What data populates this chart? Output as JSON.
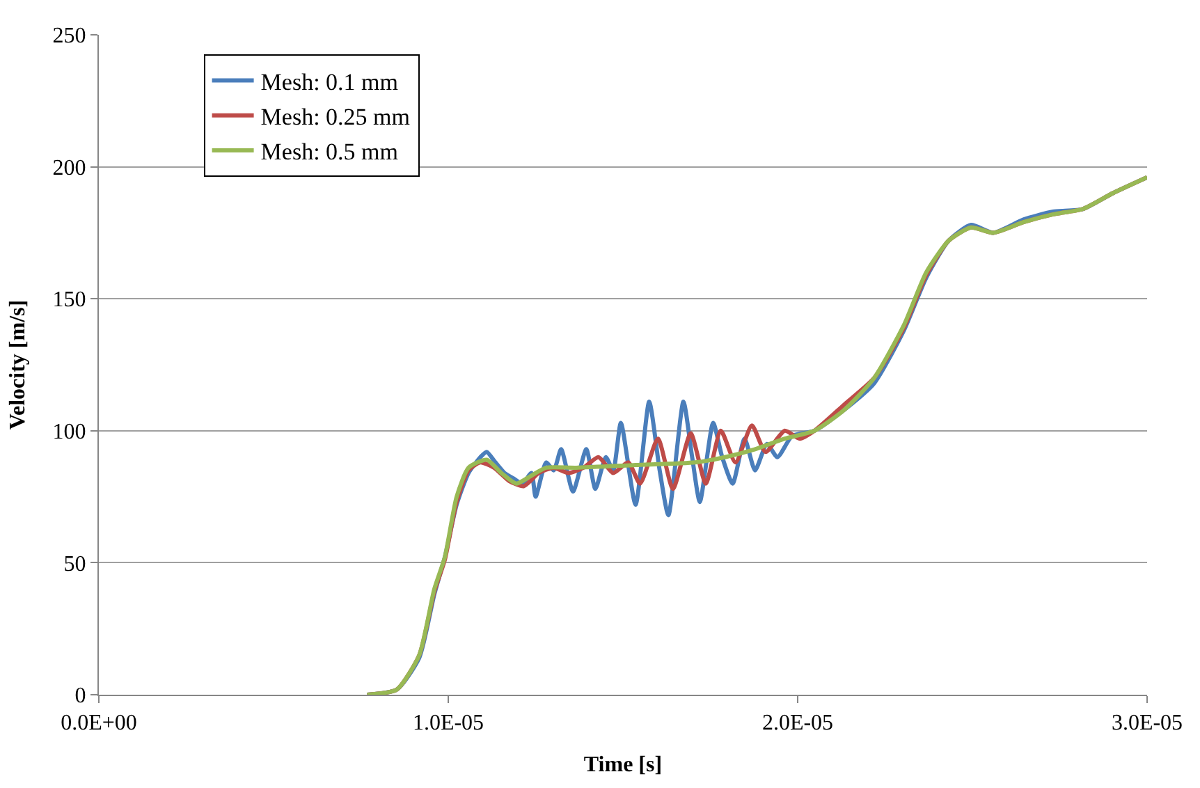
{
  "chart_data": {
    "type": "line",
    "xlabel": "Time [s]",
    "ylabel": "Velocity [m/s]",
    "xlim": [
      0,
      3e-05
    ],
    "ylim": [
      0,
      250
    ],
    "xticks": [
      {
        "value": 0,
        "label": "0.0E+00"
      },
      {
        "value": 1e-05,
        "label": "1.0E-05"
      },
      {
        "value": 2e-05,
        "label": "2.0E-05"
      },
      {
        "value": 3e-05,
        "label": "3.0E-05"
      }
    ],
    "yticks": [
      0,
      50,
      100,
      150,
      200,
      250
    ],
    "grid": "y",
    "legend": "top left",
    "line_style": "solid",
    "marker": "none",
    "series": [
      {
        "name": "Mesh: 0.1 mm",
        "color": "#4a7ebb",
        "x": [
          7.68e-06,
          8.53e-06,
          9.17e-06,
          9.6e-06,
          9.9e-06,
          1.024e-05,
          1.058e-05,
          1.092e-05,
          1.11e-05,
          1.135e-05,
          1.161e-05,
          1.186e-05,
          1.212e-05,
          1.238e-05,
          1.25e-05,
          1.28e-05,
          1.302e-05,
          1.323e-05,
          1.357e-05,
          1.395e-05,
          1.421e-05,
          1.451e-05,
          1.472e-05,
          1.494e-05,
          1.536e-05,
          1.575e-05,
          1.605e-05,
          1.63e-05,
          1.673e-05,
          1.698e-05,
          1.72e-05,
          1.758e-05,
          1.784e-05,
          1.814e-05,
          1.848e-05,
          1.878e-05,
          1.912e-05,
          1.942e-05,
          1.984e-05,
          2.048e-05,
          2.134e-05,
          2.219e-05,
          2.304e-05,
          2.368e-05,
          2.432e-05,
          2.496e-05,
          2.56e-05,
          2.646e-05,
          2.731e-05,
          2.816e-05,
          2.902e-05,
          3e-05
        ],
        "values": [
          0,
          2,
          14,
          38,
          52,
          72,
          84,
          90,
          92,
          88,
          84,
          82,
          80,
          84,
          75,
          88,
          85,
          93,
          77,
          93,
          78,
          90,
          85,
          103,
          72,
          111,
          85,
          68,
          111,
          90,
          73,
          103,
          90,
          80,
          97,
          85,
          95,
          90,
          98,
          100,
          108,
          118,
          138,
          158,
          172,
          178,
          175,
          180,
          183,
          184,
          190,
          196
        ]
      },
      {
        "name": "Mesh: 0.25 mm",
        "color": "#be4b48",
        "x": [
          7.68e-06,
          8.53e-06,
          9.17e-06,
          9.6e-06,
          9.9e-06,
          1.024e-05,
          1.058e-05,
          1.092e-05,
          1.131e-05,
          1.174e-05,
          1.216e-05,
          1.259e-05,
          1.302e-05,
          1.344e-05,
          1.387e-05,
          1.43e-05,
          1.472e-05,
          1.515e-05,
          1.549e-05,
          1.6e-05,
          1.643e-05,
          1.694e-05,
          1.737e-05,
          1.78e-05,
          1.822e-05,
          1.869e-05,
          1.908e-05,
          1.963e-05,
          2.006e-05,
          2.048e-05,
          2.134e-05,
          2.219e-05,
          2.304e-05,
          2.368e-05,
          2.432e-05,
          2.496e-05,
          2.56e-05,
          2.646e-05,
          2.731e-05,
          2.816e-05,
          2.902e-05,
          3e-05
        ],
        "values": [
          0,
          2,
          15,
          39,
          51,
          73,
          85,
          88,
          86,
          81,
          79,
          84,
          86,
          84,
          86,
          90,
          84,
          88,
          80,
          97,
          78,
          99,
          80,
          100,
          88,
          102,
          92,
          100,
          97,
          100,
          110,
          120,
          139,
          159,
          172,
          177,
          175,
          179,
          182,
          184,
          190,
          196
        ]
      },
      {
        "name": "Mesh: 0.5 mm",
        "color": "#98b954",
        "x": [
          7.68e-06,
          8.53e-06,
          9.17e-06,
          9.6e-06,
          9.9e-06,
          1.024e-05,
          1.058e-05,
          1.11e-05,
          1.152e-05,
          1.195e-05,
          1.238e-05,
          1.28e-05,
          1.366e-05,
          1.536e-05,
          1.707e-05,
          1.792e-05,
          1.878e-05,
          1.963e-05,
          2.048e-05,
          2.134e-05,
          2.219e-05,
          2.304e-05,
          2.368e-05,
          2.432e-05,
          2.496e-05,
          2.56e-05,
          2.646e-05,
          2.731e-05,
          2.816e-05,
          2.902e-05,
          3e-05
        ],
        "values": [
          0,
          2,
          15,
          40,
          52,
          75,
          86,
          89,
          84,
          80,
          83,
          86,
          86,
          87,
          88,
          90,
          93,
          97,
          100,
          108,
          120,
          140,
          160,
          172,
          177,
          175,
          179,
          182,
          184,
          190,
          196
        ]
      }
    ]
  }
}
